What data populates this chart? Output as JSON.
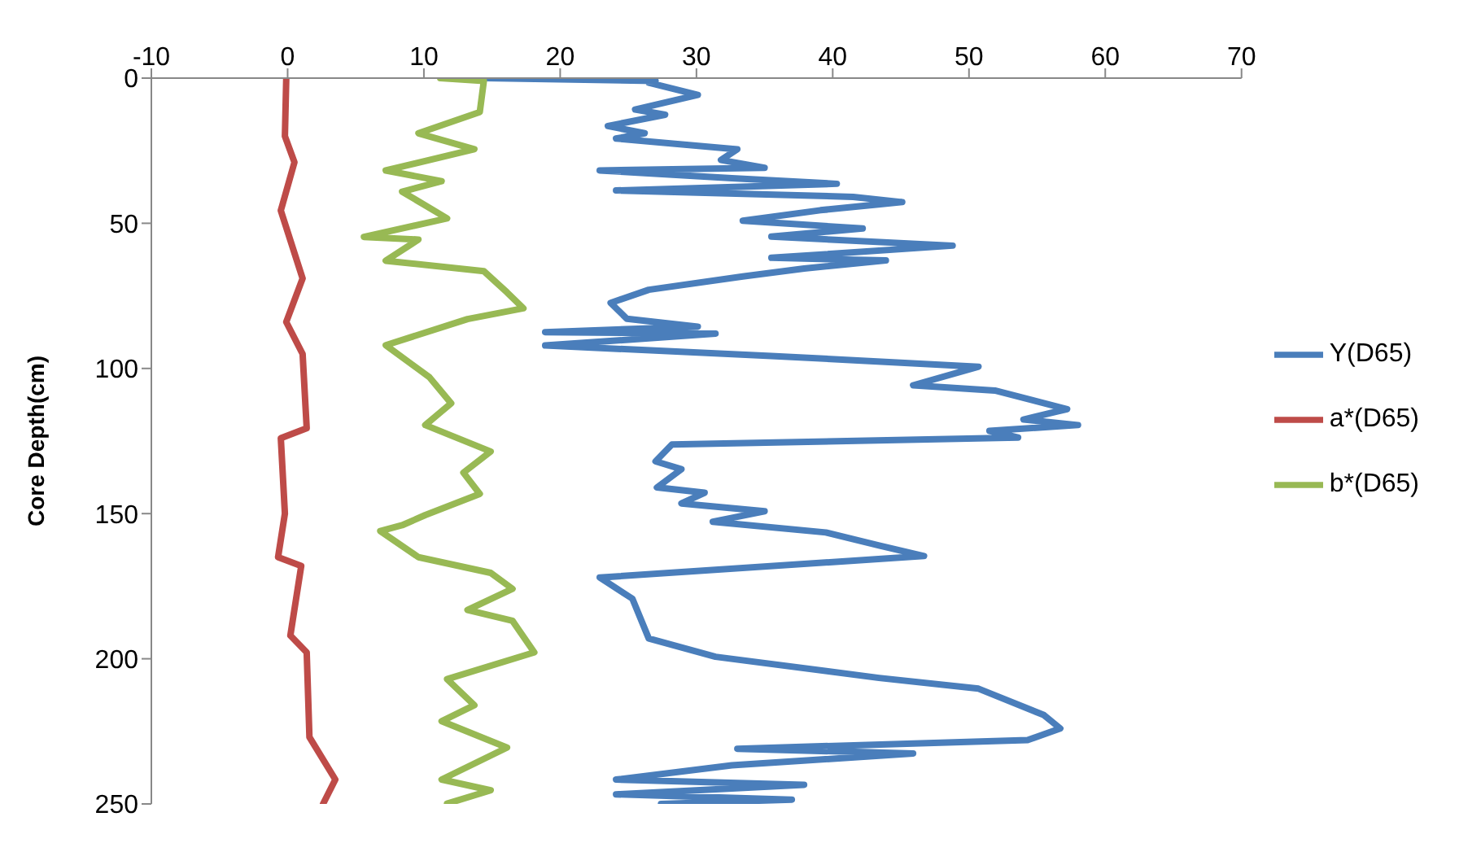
{
  "chart_data": {
    "type": "line",
    "ylabel": "Core Depth(cm)",
    "xlim": [
      -10,
      70
    ],
    "xticks": [
      -10,
      0,
      10,
      20,
      30,
      40,
      50,
      60,
      70
    ],
    "ylim": [
      250,
      0
    ],
    "yticks": [
      0,
      50,
      100,
      150,
      200,
      250
    ],
    "grid": false,
    "legend": "right",
    "marker": "none",
    "line_style": "solid",
    "series": [
      {
        "name": "Y(D65)",
        "color": "#4a7ebb",
        "x": [
          14.5,
          27,
          26.5,
          30.1,
          25.5,
          27.7,
          23.5,
          26.2,
          24.1,
          33.0,
          31.8,
          35.0,
          22.9,
          32.6,
          40.3,
          24.1,
          41.5,
          45.1,
          39.1,
          33.4,
          42.2,
          35.5,
          48.8,
          35.5,
          43.9,
          37.9,
          33.4,
          26.5,
          23.7,
          24.9,
          30.1,
          18.9,
          31.4,
          18.9,
          35.5,
          50.7,
          45.9,
          51.9,
          57.2,
          54.0,
          58.0,
          51.5,
          53.6,
          28.2,
          27.0,
          28.9,
          27.1,
          30.6,
          28.9,
          35.0,
          31.2,
          39.5,
          43.4,
          46.7,
          22.9,
          25.3,
          26.5,
          31.4,
          43.4,
          50.7,
          55.5,
          56.7,
          54.3,
          33.0,
          45.9,
          32.6,
          24.1,
          37.9,
          24.1,
          37.0,
          27.4
        ],
        "values": [
          0,
          1,
          1.6,
          5.8,
          10.8,
          12.6,
          16.5,
          19,
          20.8,
          24.5,
          28.2,
          30.9,
          31.8,
          34.5,
          36.4,
          38.7,
          40.9,
          42.7,
          45.5,
          49.1,
          51.8,
          54.6,
          57.7,
          61.9,
          62.8,
          65.6,
          68.3,
          72.9,
          77.4,
          82.9,
          85.6,
          87.5,
          88,
          92.1,
          95.7,
          99.4,
          105.8,
          107.6,
          114,
          117.6,
          119.5,
          121.5,
          123.8,
          126.2,
          132,
          134.7,
          141,
          142.8,
          146.5,
          149.2,
          152.8,
          156.5,
          161,
          164.6,
          172,
          179.3,
          193,
          199.3,
          206.6,
          210.3,
          219.4,
          224,
          228,
          231,
          232.6,
          236.7,
          241.6,
          243.4,
          246.7,
          248.5,
          250
        ]
      },
      {
        "name": "a*(D65)",
        "color": "#be4b48",
        "x": [
          -0.1,
          -0.2,
          0.5,
          -0.5,
          1.1,
          -0.1,
          1.1,
          1.4,
          -0.5,
          -0.2,
          -0.7,
          1.0,
          0.2,
          1.4,
          1.6,
          3.5,
          2.6
        ],
        "values": [
          0,
          20,
          29,
          45.6,
          69,
          84,
          95,
          120.6,
          124,
          150,
          165,
          168,
          192,
          197.8,
          227,
          241.6,
          250
        ]
      },
      {
        "name": "b*(D65)",
        "color": "#98b954",
        "x": [
          11.2,
          14.4,
          14.1,
          9.6,
          13.7,
          7.2,
          11.3,
          8.4,
          11.7,
          5.6,
          9.6,
          7.2,
          14.4,
          16.1,
          17.3,
          13.2,
          7.2,
          10.4,
          12.0,
          10.1,
          14.9,
          12.9,
          14.1,
          10.1,
          8.4,
          6.8,
          9.6,
          14.9,
          16.5,
          13.2,
          16.5,
          18.1,
          11.7,
          13.7,
          11.3,
          16.1,
          11.3,
          14.9,
          11.7
        ],
        "values": [
          0,
          1,
          11.7,
          19,
          24.5,
          31.8,
          35.5,
          39.1,
          48.3,
          54.7,
          55.6,
          62.9,
          66.5,
          73.8,
          79.3,
          83,
          92,
          103,
          112,
          119.5,
          128.6,
          135.9,
          143.2,
          150.5,
          154,
          156,
          165,
          170.4,
          175.9,
          183.2,
          186.9,
          197.8,
          207,
          216,
          221.5,
          230.6,
          241.6,
          245.3,
          249.9
        ]
      }
    ]
  }
}
